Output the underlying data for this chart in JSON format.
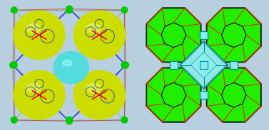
{
  "bg_color": "#b8cfe0",
  "left_bg": "#c8ddf0",
  "right_bg": "#eef8ff",
  "yellow_color": "#ccdd00",
  "yellow_hi": "#eeff88",
  "cyan_color": "#55dddd",
  "cyan_hi": "#aaffff",
  "green_color": "#22ee00",
  "red_edge": "#cc3300",
  "blue_edge": "#1122cc",
  "gray_edge": "#888888",
  "black_edge": "#111111",
  "cyan_poly": "#88eeee",
  "fig_width": 3.77,
  "fig_height": 1.83,
  "dpi": 100
}
